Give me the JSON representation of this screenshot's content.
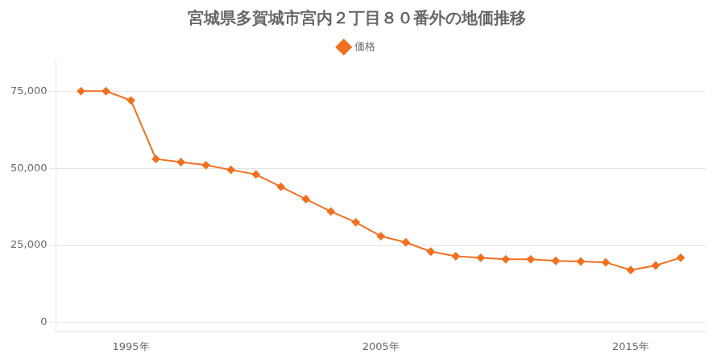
{
  "chart_data": {
    "type": "line",
    "title": "宮城県多賀城市宮内２丁目８０番外の地価推移",
    "x": [
      1993,
      1994,
      1995,
      1996,
      1997,
      1998,
      1999,
      2000,
      2001,
      2002,
      2003,
      2004,
      2005,
      2006,
      2007,
      2008,
      2009,
      2010,
      2011,
      2012,
      2013,
      2014,
      2015,
      2016,
      2017
    ],
    "series": [
      {
        "name": "価格",
        "color": "#f07020",
        "marker": "diamond",
        "line_style": "solid",
        "values": [
          75000,
          75000,
          72000,
          53000,
          52000,
          51000,
          49500,
          48000,
          44000,
          40000,
          36000,
          32500,
          28000,
          26000,
          23000,
          21500,
          21000,
          20500,
          20500,
          20000,
          19800,
          19500,
          17000,
          18500,
          21000
        ]
      }
    ],
    "xlim": [
      1992,
      2018
    ],
    "xticks": [
      {
        "value": 1995,
        "label": "1995年"
      },
      {
        "value": 2005,
        "label": "2005年"
      },
      {
        "value": 2015,
        "label": "2015年"
      }
    ],
    "ylim": [
      -3000,
      85000
    ],
    "yticks": [
      0,
      {
        "value": 25000,
        "label": "25,000"
      },
      {
        "value": 50000,
        "label": "50,000"
      },
      {
        "value": 75000,
        "label": "75,000"
      }
    ],
    "grid": "y",
    "legend": "top"
  }
}
